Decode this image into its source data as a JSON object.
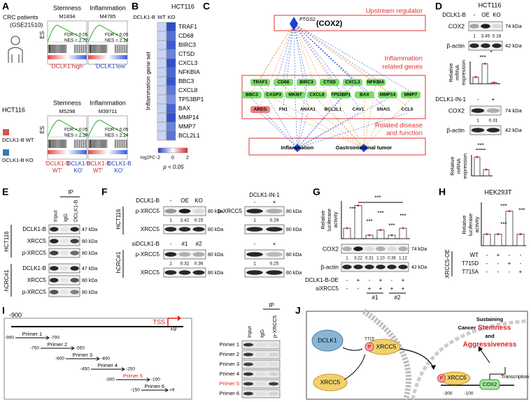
{
  "A": {
    "label": "A",
    "cohort": [
      "CRC patients",
      "(GSE21510)"
    ],
    "es": "ES",
    "cell": "HCT116",
    "top": [
      {
        "title": "Stemness",
        "id": "M1834",
        "fdr": "FDR < 0.05",
        "nes": "NES = 2.72"
      },
      {
        "title": "Inflammation",
        "id": "M4785",
        "fdr": "FDR < 0.05",
        "nes": "NES = 2.18"
      }
    ],
    "top_left": "'DCLK1'high'",
    "top_right": "'DCLK1'low'",
    "bottom": [
      {
        "title": "Stemness",
        "id": "M5298",
        "fdr": "FDR < 0.05",
        "nes": "NES = 2.10"
      },
      {
        "title": "Inflammation",
        "id": "M39711",
        "fdr": "FDR < 0.05",
        "nes": "NES = 2.14"
      }
    ],
    "legend": [
      "DCLK1-B WT",
      "DCLK1-B KO"
    ],
    "bottom_left": [
      "'DCLK1-B",
      "WT'"
    ],
    "bottom_right": [
      "'DCLK1-B",
      "KO'"
    ]
  },
  "B": {
    "label": "B",
    "cell": "HCT116",
    "col_header": "DCLK1-B",
    "cols": [
      "WT",
      "KO"
    ],
    "ylabel": "Inflammation gene set",
    "genes": [
      "TRAF1",
      "CD68",
      "BIRC3",
      "CTSD",
      "CXCL3",
      "NFKBIA",
      "BBC3",
      "CXCL8",
      "TP53BP1",
      "BAX",
      "MMP14",
      "MMP7",
      "BCL2L1"
    ],
    "legend_title": "log2FC",
    "legend_ticks": [
      "-2",
      "0",
      "2"
    ],
    "p": "p < 0.05"
  },
  "C": {
    "label": "C",
    "upstream": "Upstream regulator",
    "inflam": [
      "Inflammation",
      "related genes"
    ],
    "disease": [
      "Related disease",
      "and function"
    ],
    "regulator": "PTGS2",
    "regulator_alias": "(COX2)",
    "row1": [
      "TRAF1",
      "CD68",
      "BIRC3",
      "CTSD",
      "CXCL3",
      "NFKBIA"
    ],
    "row2": [
      "BBC3",
      "CASP3",
      "MKI67",
      "CXCL8",
      "TP53BP1",
      "BAX",
      "MMP14",
      "MMP7"
    ],
    "row3": [
      "AREG",
      "FN1",
      "ANXA1",
      "BCL2L1",
      "CAV1",
      "SNAI1",
      "CCL5"
    ],
    "diseases": [
      "Inflammation",
      "Gastrointestinal tumor"
    ]
  },
  "D": {
    "label": "D",
    "cell": "HCT116",
    "row_label": "DCLK1-B",
    "cols": [
      "-",
      "OE",
      "KO"
    ],
    "proteins": [
      "COX2",
      "β-actin"
    ],
    "kda": [
      "74 kDa",
      "42 kDa"
    ],
    "quant": [
      "1",
      "3.45",
      "0.18"
    ],
    "ylabel": [
      "Relative",
      "mRNA",
      "expression"
    ],
    "sig": [
      "***",
      "*"
    ],
    "inhibitor": "DCLK1-IN-1",
    "cols2": [
      "-",
      "+"
    ],
    "quant2": [
      "1",
      "0.31"
    ],
    "sig2": "***"
  },
  "E": {
    "label": "E",
    "ip": "IP",
    "lanes": [
      "Input",
      "IgG",
      "DCLK1-B"
    ],
    "groups": [
      "HCT116",
      "hCRC#1"
    ],
    "proteins": [
      "DCLK1-B",
      "XRCC5",
      "p-XRCC5"
    ],
    "kda": [
      "47 kDa",
      "80 kDa",
      "80 kDa"
    ]
  },
  "F": {
    "label": "F",
    "row1": "DCLK1-B",
    "cols1": [
      "-",
      "OE",
      "KO"
    ],
    "inhibitor": "DCLK1-IN-1",
    "cols2": [
      "-",
      "+"
    ],
    "groups": [
      "HCT116",
      "hCRC#1"
    ],
    "proteins": [
      "p-XRCC5",
      "XRCC5"
    ],
    "kda": "80 kDa",
    "q1": [
      "1",
      "3.42",
      "0.15"
    ],
    "q2": [
      "1",
      "0.29"
    ],
    "row2": "siDCLK1-B",
    "cols3": [
      "-",
      "#1",
      "#2"
    ],
    "q3": [
      "1",
      "0.32",
      "0.36"
    ],
    "q4": [
      "1",
      "0.25"
    ]
  },
  "G": {
    "label": "G",
    "ylabel": [
      "Relative",
      "luciferase",
      "activity"
    ],
    "sig": "***",
    "proteins": [
      "COX2",
      "β-actin"
    ],
    "kda": [
      "74 kDa",
      "42 kDa"
    ],
    "quant": [
      "1",
      "3.22",
      "0.31",
      "1.10",
      "0.36",
      "1.12"
    ],
    "rows": [
      "DCLK1-B-OE",
      "siXRCC5"
    ],
    "signs1": [
      "-",
      "+",
      "-",
      "+",
      "-",
      "+"
    ],
    "signs2": [
      "-",
      "-",
      "+",
      "+",
      "+",
      "+"
    ],
    "groups": [
      "#1",
      "#2"
    ]
  },
  "H": {
    "label": "H",
    "cell": "HEK293T",
    "ylabel": [
      "Relative",
      "luciferase",
      "activity"
    ],
    "sig": "***",
    "group": "XRCC5-OE",
    "rows": [
      "WT",
      "T715D",
      "T715A"
    ],
    "signs": [
      [
        "-",
        "+",
        "-",
        "-"
      ],
      [
        "-",
        "-",
        "+",
        "-"
      ],
      [
        "-",
        "-",
        "-",
        "+"
      ]
    ]
  },
  "I": {
    "label": "I",
    "start": "-900",
    "tss": "TSS",
    "end": "+9",
    "primers": [
      {
        "name": "Primer 1",
        "from": "-900",
        "to": "-700"
      },
      {
        "name": "Primer 2",
        "from": "-750",
        "to": "-550"
      },
      {
        "name": "Primer 3",
        "from": "-600",
        "to": "-400"
      },
      {
        "name": "Primer 4",
        "from": "-450",
        "to": "-250"
      },
      {
        "name": "Primer 5",
        "from": "-300",
        "to": "-100"
      },
      {
        "name": "Primer 6",
        "from": "-150",
        "to": "+9"
      }
    ],
    "ip": "IP",
    "lanes": [
      "Input",
      "IgG",
      "p-XRCC5"
    ]
  },
  "J": {
    "label": "J",
    "dclk1": "DCLK1",
    "xrcc5": "XRCC5",
    "p": "P",
    "t715": "T715",
    "pxrcc5": "XRCC5",
    "nuc_p": "P",
    "nuc_xrcc5": "XRCC5",
    "cox2": "COX2",
    "transcription": "Transcription",
    "sustaining": "Sustaining",
    "cancer": "Cancer",
    "stemness": "Stemness",
    "and": "and",
    "aggressiveness": "Aggressiveness",
    "promoter": [
      "-300",
      "-100"
    ]
  }
}
